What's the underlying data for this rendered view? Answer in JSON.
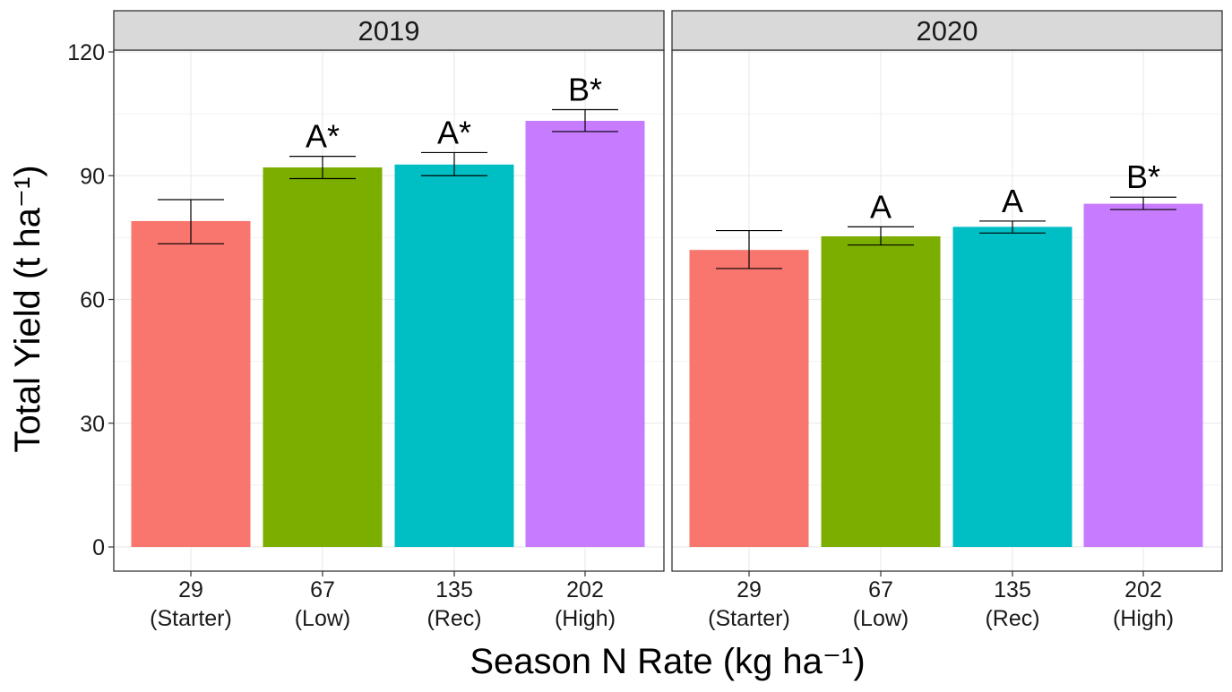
{
  "chart_data": {
    "type": "bar",
    "ylabel": "Total Yield (t ha⁻¹)",
    "xlabel": "Season N Rate (kg ha⁻¹)",
    "ylim": [
      0,
      120
    ],
    "yticks": [
      0,
      30,
      60,
      90,
      120
    ],
    "grid": true,
    "categories": [
      {
        "rate": "29",
        "name": "(Starter)",
        "color": "#F8766D"
      },
      {
        "rate": "67",
        "name": "(Low)",
        "color": "#7CAE00"
      },
      {
        "rate": "135",
        "name": "(Rec)",
        "color": "#00BFC4"
      },
      {
        "rate": "202",
        "name": "(High)",
        "color": "#C77CFF"
      }
    ],
    "panels": [
      {
        "title": "2019",
        "values": [
          79,
          92,
          92.7,
          103.3
        ],
        "err_low": [
          73.5,
          89.3,
          90.0,
          100.7
        ],
        "err_high": [
          84.2,
          94.7,
          95.6,
          106.0
        ],
        "labels": [
          "",
          "A*",
          "A*",
          "B*"
        ]
      },
      {
        "title": "2020",
        "values": [
          72,
          75.3,
          77.6,
          83.2
        ],
        "err_low": [
          67.5,
          73.2,
          76.1,
          81.8
        ],
        "err_high": [
          76.7,
          77.6,
          79.0,
          84.8
        ],
        "labels": [
          "",
          "A",
          "A",
          "B*"
        ]
      }
    ]
  }
}
